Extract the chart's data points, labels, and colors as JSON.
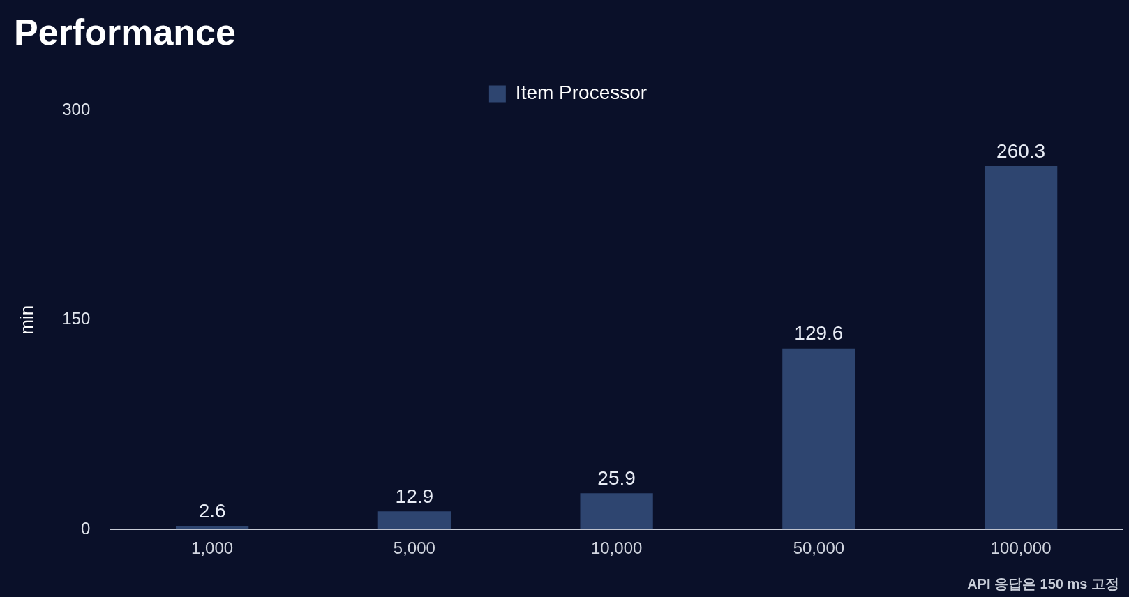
{
  "chart_data": {
    "type": "bar",
    "title": "Performance",
    "ylabel": "min",
    "categories": [
      "1,000",
      "5,000",
      "10,000",
      "50,000",
      "100,000"
    ],
    "series": [
      {
        "name": "Item Processor",
        "color": "#2e4570",
        "values": [
          2.6,
          12.9,
          25.9,
          129.6,
          260.3
        ]
      }
    ],
    "ylim": [
      0,
      300
    ],
    "yticks": [
      0,
      150,
      300
    ],
    "grid": false,
    "legend": "top",
    "data_labels": true,
    "annotations": [
      "API 응답은 150 ms 고정"
    ]
  }
}
